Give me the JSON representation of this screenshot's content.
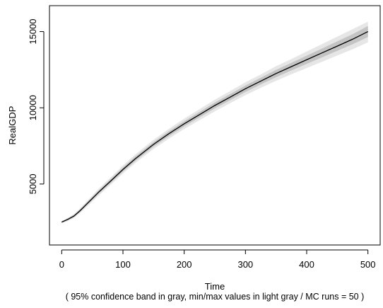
{
  "chart_data": {
    "type": "line",
    "title": "",
    "xlabel": "Time",
    "ylabel": "RealGDP",
    "caption": "( 95% confidence band in gray, min/max values in light gray / MC runs = 50 )",
    "xlim": [
      -20,
      520
    ],
    "ylim": [
      1000,
      16700
    ],
    "x_ticks": [
      0,
      100,
      200,
      300,
      400,
      500
    ],
    "y_ticks": [
      5000,
      10000,
      15000
    ],
    "grid": false,
    "legend": "none",
    "colors": {
      "line": "#000000",
      "ci_band": "#c4c4c4",
      "minmax_band": "#e6e6e6"
    },
    "series": [
      {
        "x": [
          0,
          10,
          20,
          30,
          40,
          50,
          60,
          80,
          100,
          120,
          150,
          175,
          200,
          225,
          250,
          275,
          300,
          325,
          350,
          375,
          400,
          425,
          450,
          475,
          500
        ],
        "mean": [
          2500,
          2680,
          2900,
          3250,
          3650,
          4050,
          4450,
          5200,
          5950,
          6650,
          7600,
          8300,
          8950,
          9550,
          10150,
          10700,
          11250,
          11750,
          12250,
          12700,
          13150,
          13600,
          14050,
          14500,
          15000
        ],
        "ci_low": [
          2460,
          2620,
          2830,
          3170,
          3560,
          3950,
          4340,
          5080,
          5820,
          6510,
          7450,
          8140,
          8780,
          9370,
          9960,
          10500,
          11040,
          11530,
          12010,
          12450,
          12880,
          13310,
          13740,
          14170,
          14640
        ],
        "ci_high": [
          2540,
          2740,
          2970,
          3330,
          3740,
          4150,
          4560,
          5320,
          6080,
          6790,
          7750,
          8460,
          9120,
          9730,
          10340,
          10900,
          11460,
          11970,
          12490,
          12950,
          13420,
          13890,
          14360,
          14830,
          15360
        ],
        "min": [
          2420,
          2570,
          2770,
          3090,
          3470,
          3850,
          4230,
          4960,
          5690,
          6370,
          7300,
          7980,
          8610,
          9190,
          9770,
          10300,
          10830,
          11310,
          11770,
          12200,
          12610,
          13020,
          13430,
          13840,
          14300
        ],
        "max": [
          2580,
          2790,
          3030,
          3410,
          3830,
          4250,
          4670,
          5440,
          6210,
          6930,
          7900,
          8620,
          9290,
          9910,
          10530,
          11100,
          11670,
          12190,
          12730,
          13200,
          13690,
          14180,
          14670,
          15160,
          15650
        ]
      }
    ]
  }
}
